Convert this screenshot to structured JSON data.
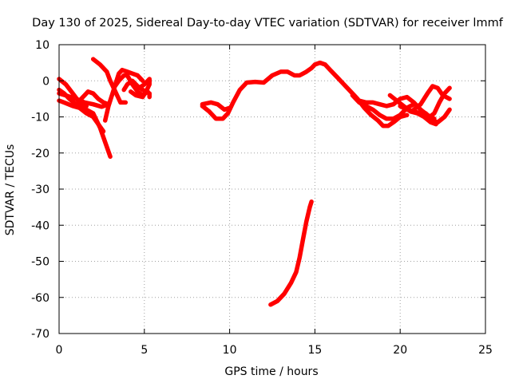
{
  "chart_data": {
    "type": "line",
    "title": "Day 130 of 2025, Sidereal Day-to-day VTEC variation (SDTVAR) for receiver lmmf",
    "xlabel": "GPS time / hours",
    "ylabel": "SDTVAR / TECUs",
    "xlim": [
      0,
      25
    ],
    "ylim": [
      -70,
      10
    ],
    "xticks": [
      0,
      5,
      10,
      15,
      20,
      25
    ],
    "yticks": [
      10,
      0,
      -10,
      -20,
      -30,
      -40,
      -50,
      -60,
      -70
    ],
    "grid": true,
    "series_color": "#ff0000",
    "series": [
      {
        "name": "trace-1",
        "points": [
          [
            0.0,
            0.5
          ],
          [
            0.4,
            -1
          ],
          [
            0.8,
            -3.5
          ],
          [
            1.2,
            -6
          ],
          [
            1.6,
            -8
          ],
          [
            2.0,
            -9
          ],
          [
            2.4,
            -13
          ],
          [
            2.7,
            -17
          ],
          [
            3.0,
            -21
          ]
        ]
      },
      {
        "name": "trace-2",
        "points": [
          [
            0.0,
            -3.5
          ],
          [
            0.5,
            -4.2
          ],
          [
            1.0,
            -5
          ],
          [
            1.5,
            -6
          ],
          [
            2.0,
            -6.5
          ],
          [
            2.5,
            -7.2
          ],
          [
            2.9,
            -6.5
          ]
        ]
      },
      {
        "name": "trace-3",
        "points": [
          [
            0.0,
            -2.5
          ],
          [
            0.3,
            -3.5
          ],
          [
            0.6,
            -5
          ],
          [
            1.0,
            -6.5
          ],
          [
            1.3,
            -7.5
          ],
          [
            1.6,
            -7
          ]
        ]
      },
      {
        "name": "trace-4",
        "points": [
          [
            0.0,
            -5.5
          ],
          [
            0.4,
            -6.2
          ],
          [
            0.8,
            -7
          ],
          [
            1.2,
            -7.5
          ],
          [
            1.6,
            -9
          ],
          [
            2.0,
            -10
          ],
          [
            2.3,
            -12
          ],
          [
            2.6,
            -14
          ]
        ]
      },
      {
        "name": "trace-5",
        "points": [
          [
            1.2,
            -5.5
          ],
          [
            1.5,
            -4
          ],
          [
            1.7,
            -3
          ],
          [
            2.0,
            -3.5
          ],
          [
            2.3,
            -5
          ],
          [
            2.6,
            -6
          ],
          [
            2.9,
            -6.5
          ]
        ]
      },
      {
        "name": "trace-6",
        "points": [
          [
            2.0,
            6
          ],
          [
            2.4,
            4.5
          ],
          [
            2.8,
            2.5
          ],
          [
            3.0,
            0
          ],
          [
            3.2,
            -2
          ],
          [
            3.4,
            -4
          ],
          [
            3.6,
            -6
          ],
          [
            3.9,
            -6
          ]
        ]
      },
      {
        "name": "trace-7",
        "points": [
          [
            2.7,
            -11
          ],
          [
            2.9,
            -7
          ],
          [
            3.1,
            -4
          ],
          [
            3.3,
            -1
          ],
          [
            3.5,
            2
          ],
          [
            3.7,
            3
          ],
          [
            4.0,
            2.5
          ],
          [
            4.3,
            2
          ],
          [
            4.6,
            1.5
          ],
          [
            4.9,
            0
          ]
        ]
      },
      {
        "name": "trace-8",
        "points": [
          [
            3.2,
            -2
          ],
          [
            3.5,
            0
          ],
          [
            3.8,
            1.5
          ],
          [
            4.0,
            1.5
          ],
          [
            4.3,
            -1
          ],
          [
            4.6,
            -3
          ],
          [
            4.9,
            -4
          ],
          [
            5.2,
            -3
          ]
        ]
      },
      {
        "name": "trace-9",
        "points": [
          [
            3.8,
            -2.5
          ],
          [
            4.0,
            -1
          ],
          [
            4.3,
            0
          ],
          [
            4.6,
            -1.5
          ],
          [
            4.9,
            -2.5
          ],
          [
            5.3,
            -3.5
          ],
          [
            5.3,
            -4.5
          ]
        ]
      },
      {
        "name": "trace-10",
        "points": [
          [
            4.2,
            -3
          ],
          [
            4.5,
            -4
          ],
          [
            4.9,
            -4.5
          ],
          [
            5.1,
            -3
          ],
          [
            5.3,
            -1
          ],
          [
            5.3,
            0.5
          ],
          [
            5.0,
            -1
          ],
          [
            4.7,
            -2
          ],
          [
            4.5,
            -1
          ]
        ]
      },
      {
        "name": "trace-11",
        "points": [
          [
            8.4,
            -7
          ],
          [
            8.8,
            -8.5
          ],
          [
            9.2,
            -10.5
          ],
          [
            9.6,
            -10.5
          ],
          [
            9.9,
            -9
          ],
          [
            10.2,
            -6
          ],
          [
            10.6,
            -2.5
          ],
          [
            11.0,
            -0.5
          ],
          [
            11.5,
            -0.3
          ],
          [
            12.0,
            -0.5
          ],
          [
            12.5,
            1.5
          ],
          [
            13.0,
            2.5
          ],
          [
            13.4,
            2.5
          ],
          [
            13.8,
            1.5
          ],
          [
            14.1,
            1.5
          ],
          [
            14.5,
            2.5
          ],
          [
            14.8,
            3.5
          ],
          [
            15.0,
            4.5
          ],
          [
            15.3,
            5
          ],
          [
            15.6,
            4.5
          ],
          [
            15.9,
            3
          ],
          [
            16.3,
            1
          ],
          [
            16.7,
            -1
          ],
          [
            17.1,
            -3
          ],
          [
            17.5,
            -5
          ],
          [
            17.9,
            -7.5
          ],
          [
            18.3,
            -9.5
          ],
          [
            18.7,
            -11
          ],
          [
            19.0,
            -12.5
          ],
          [
            19.3,
            -12.5
          ],
          [
            19.6,
            -11.5
          ],
          [
            20.0,
            -10
          ],
          [
            20.4,
            -9.5
          ]
        ]
      },
      {
        "name": "trace-12",
        "points": [
          [
            8.4,
            -6.5
          ],
          [
            8.9,
            -6
          ],
          [
            9.3,
            -6.5
          ],
          [
            9.7,
            -8
          ],
          [
            10.0,
            -7.5
          ]
        ]
      },
      {
        "name": "trace-13",
        "points": [
          [
            17.2,
            -4
          ],
          [
            17.6,
            -6
          ],
          [
            18.0,
            -7
          ],
          [
            18.4,
            -8
          ],
          [
            18.8,
            -9.5
          ],
          [
            19.2,
            -10.5
          ],
          [
            19.6,
            -10.5
          ],
          [
            20.0,
            -9.5
          ],
          [
            20.4,
            -7.5
          ],
          [
            20.8,
            -6.5
          ]
        ]
      },
      {
        "name": "trace-14",
        "points": [
          [
            17.6,
            -5.5
          ],
          [
            18.0,
            -6
          ],
          [
            18.4,
            -6
          ],
          [
            18.8,
            -6.5
          ],
          [
            19.2,
            -7
          ],
          [
            19.6,
            -6.5
          ],
          [
            20.0,
            -5
          ],
          [
            20.4,
            -4.5
          ],
          [
            20.8,
            -6
          ],
          [
            21.2,
            -8
          ],
          [
            21.6,
            -9.5
          ],
          [
            22.0,
            -10.5
          ]
        ]
      },
      {
        "name": "trace-15",
        "points": [
          [
            19.4,
            -4
          ],
          [
            19.8,
            -5.5
          ],
          [
            20.2,
            -7
          ],
          [
            20.6,
            -8.5
          ],
          [
            21.0,
            -9
          ],
          [
            21.4,
            -10
          ],
          [
            21.8,
            -11.5
          ],
          [
            22.1,
            -12
          ]
        ]
      },
      {
        "name": "trace-16",
        "points": [
          [
            20.0,
            -7
          ],
          [
            20.4,
            -8
          ],
          [
            20.8,
            -8.5
          ],
          [
            21.2,
            -9
          ],
          [
            21.6,
            -10.5
          ],
          [
            22.0,
            -9
          ],
          [
            22.3,
            -6
          ],
          [
            22.6,
            -3.5
          ],
          [
            22.9,
            -2
          ]
        ]
      },
      {
        "name": "trace-17",
        "points": [
          [
            20.8,
            -8
          ],
          [
            21.2,
            -6.5
          ],
          [
            21.6,
            -3.5
          ],
          [
            21.9,
            -1.5
          ],
          [
            22.2,
            -2
          ],
          [
            22.5,
            -4
          ],
          [
            22.9,
            -5
          ]
        ]
      },
      {
        "name": "trace-18",
        "points": [
          [
            21.5,
            -9
          ],
          [
            21.9,
            -11
          ],
          [
            22.2,
            -11.5
          ],
          [
            22.6,
            -10
          ],
          [
            22.9,
            -8
          ]
        ]
      },
      {
        "name": "trace-19",
        "points": [
          [
            12.4,
            -62
          ],
          [
            12.8,
            -61
          ],
          [
            13.2,
            -59
          ],
          [
            13.6,
            -56
          ],
          [
            13.9,
            -53
          ],
          [
            14.1,
            -49
          ],
          [
            14.3,
            -44
          ],
          [
            14.5,
            -39
          ],
          [
            14.7,
            -35
          ],
          [
            14.8,
            -33.5
          ]
        ]
      }
    ]
  }
}
